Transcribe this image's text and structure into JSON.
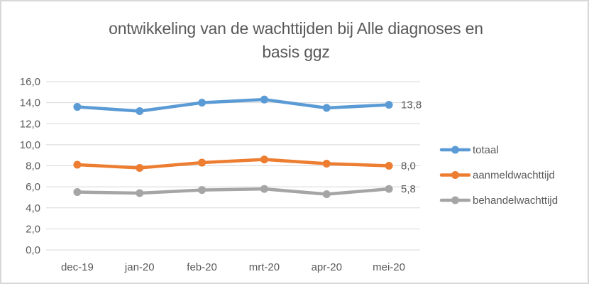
{
  "window": {
    "background_color": "#FFFFFF",
    "border_color": "#D8D8D8"
  },
  "chart_data": {
    "type": "line",
    "title": "ontwikkeling van de wachttijden bij Alle diagnoses en basis ggz",
    "title_lines": [
      "ontwikkeling van de wachttijden bij Alle diagnoses en",
      "basis ggz"
    ],
    "categories": [
      "dec-19",
      "jan-20",
      "feb-20",
      "mrt-20",
      "apr-20",
      "mei-20"
    ],
    "series": [
      {
        "name": "totaal",
        "color": "#5B9BD5",
        "values": [
          13.6,
          13.2,
          14.0,
          14.3,
          13.5,
          13.8
        ],
        "end_label": "13,8"
      },
      {
        "name": "aanmeldwachttijd",
        "color": "#ED7D31",
        "values": [
          8.1,
          7.8,
          8.3,
          8.6,
          8.2,
          8.0
        ],
        "end_label": "8,0"
      },
      {
        "name": "behandelwachttijd",
        "color": "#A5A5A5",
        "values": [
          5.5,
          5.4,
          5.7,
          5.8,
          5.3,
          5.8
        ],
        "end_label": "5,8"
      }
    ],
    "xlabel": "",
    "ylabel": "",
    "ylim": [
      0,
      16
    ],
    "ytick_step": 2,
    "ytick_labels": [
      "0,0",
      "2,0",
      "4,0",
      "6,0",
      "8,0",
      "10,0",
      "12,0",
      "14,0",
      "16,0"
    ],
    "grid": true,
    "gridline_color": "#D9D9D9",
    "text_color": "#595959",
    "legend_position": "right",
    "legend_items": [
      "totaal",
      "aanmeldwachttijd",
      "behandelwachttijd"
    ],
    "number_format": "comma-decimal"
  }
}
